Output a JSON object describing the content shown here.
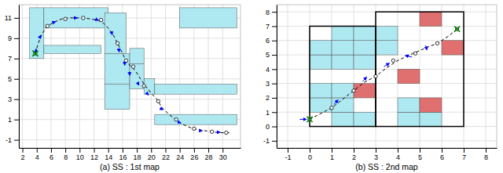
{
  "chart_data": [
    {
      "type": "trajectory",
      "xlabel": "(a) SS : 1st map",
      "xlim": [
        1.5,
        32.5
      ],
      "ylim": [
        -1.8,
        12.3
      ],
      "xticks": [
        2,
        4,
        6,
        8,
        10,
        12,
        14,
        16,
        18,
        20,
        22,
        24,
        26,
        28,
        30
      ],
      "yticks": [
        -1,
        1,
        3,
        5,
        7,
        9,
        11
      ],
      "grid": true,
      "series": [
        {
          "type": "rect",
          "color": "#aee8f0",
          "values": [
            [
              3.0,
              7.0,
              2.0,
              5.0
            ],
            [
              5.0,
              10.0,
              9.0,
              2.0
            ],
            [
              5.0,
              7.5,
              8.0,
              0.8
            ],
            [
              13.5,
              7.5,
              3.0,
              4.0
            ],
            [
              13.5,
              4.5,
              3.5,
              3.0
            ],
            [
              13.5,
              2.0,
              3.5,
              2.5
            ],
            [
              17.0,
              6.5,
              2.0,
              1.5
            ],
            [
              17.0,
              4.0,
              2.0,
              2.5
            ],
            [
              19.0,
              3.5,
              1.5,
              1.5
            ],
            [
              20.5,
              3.5,
              11.5,
              1.0
            ],
            [
              20.5,
              0.5,
              11.5,
              1.0
            ],
            [
              24.0,
              10.0,
              8.0,
              2.0
            ]
          ]
        },
        {
          "type": "line",
          "color": "black",
          "line_style": "dashed",
          "x": [
            3.8,
            4.2,
            4.8,
            5.5,
            6.5,
            7.5,
            8.5,
            9.5,
            10.5,
            11.5,
            12.5,
            13.3,
            14.0,
            14.8,
            15.3,
            15.8,
            16.2,
            16.5,
            16.8,
            17.2,
            17.8,
            18.5,
            19.2,
            20.0,
            20.8,
            21.5,
            22.5,
            23.5,
            24.5,
            25.5,
            26.5,
            27.5,
            28.5,
            29.5,
            30.5,
            31.2
          ],
          "values": [
            7.5,
            8.5,
            9.5,
            10.2,
            10.6,
            10.9,
            11.0,
            11.0,
            11.0,
            10.9,
            10.8,
            10.5,
            10.0,
            9.2,
            8.5,
            7.8,
            7.2,
            6.8,
            6.5,
            6.2,
            5.8,
            5.0,
            4.3,
            3.6,
            3.0,
            2.2,
            1.5,
            1.0,
            0.5,
            0.2,
            0.0,
            -0.1,
            -0.2,
            -0.3,
            -0.3,
            -0.3
          ]
        },
        {
          "type": "scatter",
          "marker": "circle",
          "color": "black",
          "x": [
            3.8,
            5.5,
            8.0,
            10.5,
            13.0,
            15.3,
            16.5,
            17.5,
            19.0,
            21.0,
            23.5,
            26.0,
            28.5,
            30.5
          ],
          "values": [
            7.5,
            10.2,
            10.9,
            11.0,
            10.8,
            8.5,
            6.8,
            6.2,
            4.3,
            2.8,
            1.0,
            0.1,
            -0.2,
            -0.3
          ]
        },
        {
          "type": "arrow",
          "color": "blue",
          "x": [
            3.9,
            4.5,
            6.5,
            9.5,
            12.5,
            14.5,
            15.5,
            16.3,
            17.0,
            18.2,
            19.5,
            21.5,
            24.0,
            27.0,
            29.5
          ],
          "values": [
            7.8,
            9.2,
            10.6,
            11.0,
            10.8,
            9.5,
            7.8,
            6.5,
            5.5,
            4.5,
            3.5,
            2.0,
            0.7,
            -0.1,
            -0.25
          ],
          "dx": [
            0.05,
            0.2,
            0.4,
            0.5,
            0.4,
            0.2,
            0.1,
            0.05,
            0.1,
            0.3,
            0.4,
            0.4,
            0.5,
            0.5,
            0.5
          ],
          "dy": [
            0.5,
            0.3,
            0.1,
            0.0,
            -0.1,
            -0.5,
            -0.5,
            -0.5,
            -0.5,
            -0.4,
            -0.3,
            -0.2,
            -0.1,
            0.0,
            0.0
          ]
        },
        {
          "type": "scatter",
          "marker": "x",
          "color": "green",
          "x": [
            3.8
          ],
          "values": [
            7.5
          ]
        }
      ]
    },
    {
      "type": "trajectory",
      "xlabel": "(b) SS : 2nd map",
      "xlim": [
        -1.5,
        8.5
      ],
      "ylim": [
        -1.5,
        8.5
      ],
      "xticks": [
        -1,
        0,
        1,
        2,
        3,
        4,
        5,
        6,
        7,
        8
      ],
      "yticks": [
        -1,
        0,
        1,
        2,
        3,
        4,
        5,
        6,
        7,
        8
      ],
      "grid": true,
      "series": [
        {
          "type": "rect",
          "color": "#aee8f0",
          "values": [
            [
              0,
              1,
              1,
              1
            ],
            [
              0,
              2,
              1,
              1
            ],
            [
              0,
              4,
              1,
              1
            ],
            [
              0,
              5,
              1,
              1
            ],
            [
              1,
              0,
              1,
              1
            ],
            [
              1,
              1,
              1,
              1
            ],
            [
              1,
              2,
              1,
              1
            ],
            [
              1,
              4,
              1,
              1
            ],
            [
              1,
              5,
              1,
              1
            ],
            [
              1,
              6,
              1,
              1
            ],
            [
              2,
              0,
              1,
              1
            ],
            [
              2,
              4,
              1,
              1
            ],
            [
              2,
              5,
              1,
              1
            ],
            [
              2,
              6,
              1,
              1
            ],
            [
              3,
              5,
              1,
              1
            ],
            [
              3,
              6,
              1,
              1
            ],
            [
              4,
              0,
              1,
              1
            ],
            [
              4,
              1,
              1,
              1
            ],
            [
              5,
              0,
              1,
              1
            ]
          ]
        },
        {
          "type": "rect",
          "color": "#e07070",
          "values": [
            [
              2,
              2,
              1,
              1
            ],
            [
              4,
              3,
              1,
              1
            ],
            [
              5,
              1,
              1,
              1
            ],
            [
              5,
              7,
              1,
              1
            ],
            [
              6,
              5,
              1,
              1
            ]
          ]
        },
        {
          "type": "outline",
          "color": "black",
          "values": [
            [
              0,
              0,
              3,
              7
            ],
            [
              3,
              0,
              4,
              8
            ]
          ]
        },
        {
          "type": "line",
          "color": "black",
          "line_style": "dashed",
          "x": [
            0.0,
            0.5,
            1.0,
            1.5,
            2.0,
            2.5,
            3.0,
            3.5,
            4.0,
            4.7,
            5.3,
            5.8,
            6.3,
            6.7
          ],
          "values": [
            0.5,
            0.9,
            1.3,
            1.9,
            2.5,
            3.1,
            3.5,
            4.1,
            4.6,
            5.1,
            5.5,
            5.8,
            6.3,
            6.8
          ]
        },
        {
          "type": "scatter",
          "marker": "circle",
          "color": "black",
          "x": [
            0.0,
            1.0,
            2.0,
            3.0,
            3.8,
            4.8,
            5.8,
            6.7
          ],
          "values": [
            0.5,
            1.3,
            2.5,
            3.5,
            4.6,
            5.1,
            5.8,
            6.8
          ]
        },
        {
          "type": "arrow",
          "color": "blue",
          "x": [
            -0.3,
            1.2,
            2.5,
            3.5,
            4.5,
            5.3
          ],
          "values": [
            0.5,
            1.7,
            3.3,
            4.3,
            4.9,
            5.5
          ],
          "dx": [
            0.5,
            0.3,
            0.3,
            0.4,
            -0.5,
            0.1
          ],
          "dy": [
            0.0,
            0.5,
            0.5,
            0.4,
            0.2,
            -0.5
          ]
        },
        {
          "type": "scatter",
          "marker": "x",
          "color": "green",
          "x": [
            0.0
          ],
          "values": [
            0.5
          ]
        },
        {
          "type": "scatter",
          "marker": "x",
          "color": "green",
          "x": [
            6.7
          ],
          "values": [
            6.8
          ]
        }
      ]
    }
  ]
}
